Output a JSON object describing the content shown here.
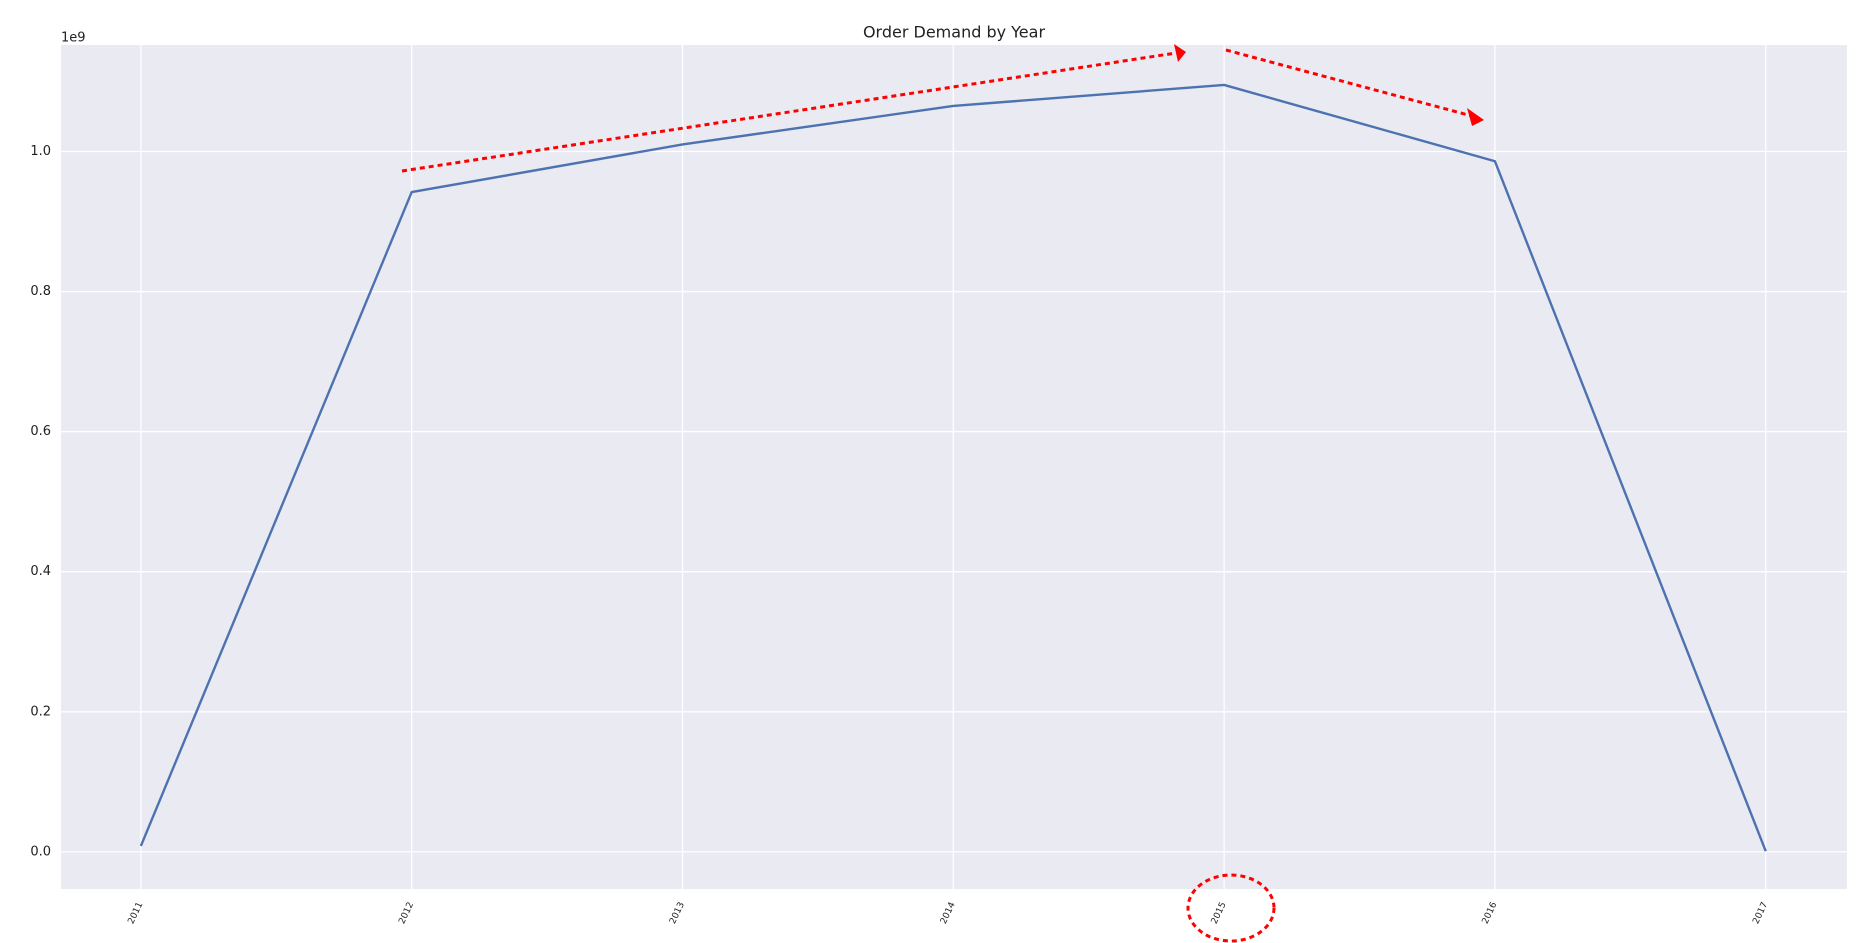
{
  "chart_data": {
    "type": "line",
    "title": "Order Demand by Year",
    "y_offset_label": "1e9",
    "x": [
      2011,
      2012,
      2013,
      2014,
      2015,
      2016,
      2017
    ],
    "series": [
      {
        "name": "Order_Demand",
        "color": "#4c72b0",
        "values": [
          8500000,
          942000000,
          1010000000,
          1065000000,
          1095000000,
          986000000,
          1000000
        ]
      }
    ],
    "xlim": [
      2010.705,
      2017.3
    ],
    "xticks": [
      2011,
      2012,
      2013,
      2014,
      2015,
      2016,
      2017
    ],
    "ylim": [
      -53000000,
      1152000000
    ],
    "yticks": [
      {
        "value": 0,
        "label": "0.0"
      },
      {
        "value": 200000000,
        "label": "0.2"
      },
      {
        "value": 400000000,
        "label": "0.4"
      },
      {
        "value": 600000000,
        "label": "0.6"
      },
      {
        "value": 800000000,
        "label": "0.8"
      },
      {
        "value": 1000000000,
        "label": "1.0"
      }
    ],
    "grid": true
  }
}
